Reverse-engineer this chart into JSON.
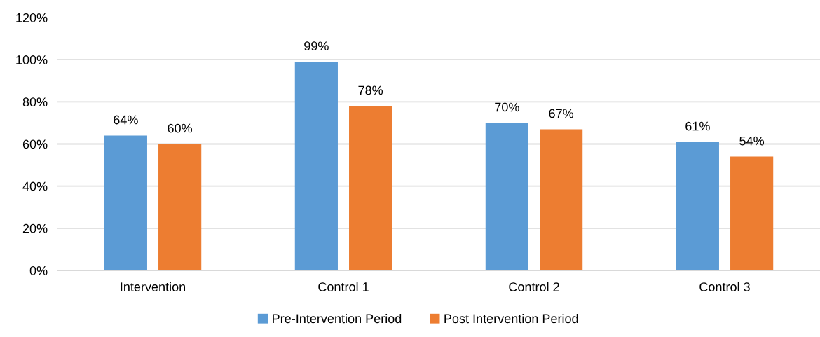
{
  "chart_data": {
    "type": "bar",
    "categories": [
      "Intervention",
      "Control 1",
      "Control 2",
      "Control 3"
    ],
    "series": [
      {
        "name": "Pre-Intervention Period",
        "color": "#5b9bd5",
        "values": [
          64,
          99,
          70,
          61
        ],
        "value_labels": [
          "64%",
          "99%",
          "70%",
          "61%"
        ]
      },
      {
        "name": "Post Intervention Period",
        "color": "#ed7d31",
        "values": [
          60,
          78,
          67,
          54
        ],
        "value_labels": [
          "60%",
          "78%",
          "67%",
          "54%"
        ]
      }
    ],
    "ylim": [
      0,
      120
    ],
    "yticks": [
      {
        "value": 0,
        "label": "0%"
      },
      {
        "value": 20,
        "label": "20%"
      },
      {
        "value": 40,
        "label": "40%"
      },
      {
        "value": 60,
        "label": "60%"
      },
      {
        "value": 80,
        "label": "80%"
      },
      {
        "value": 100,
        "label": "100%"
      },
      {
        "value": 120,
        "label": "120%"
      }
    ],
    "grid": "y",
    "legend": "bottom"
  }
}
